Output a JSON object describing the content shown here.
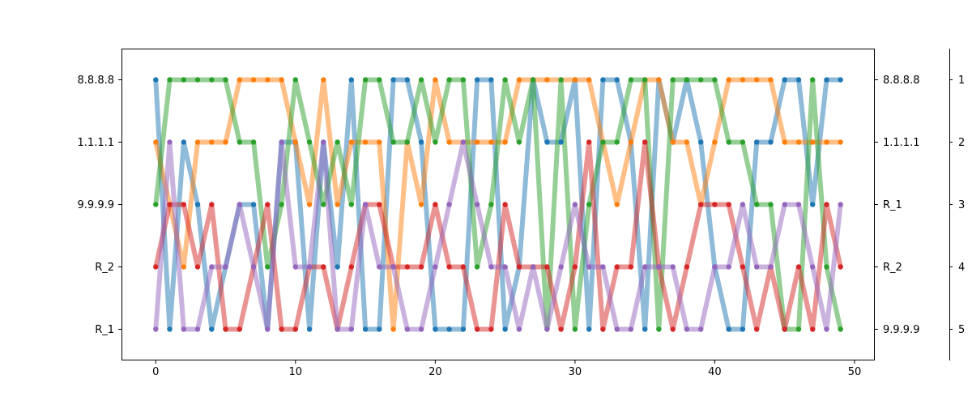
{
  "chart_data": {
    "type": "line",
    "title": "",
    "xlabel": "",
    "ylabel": "",
    "xlim": [
      -2.45,
      51.45
    ],
    "ylim": [
      0.5,
      5.5
    ],
    "x_ticks": [
      0,
      10,
      20,
      30,
      40,
      50
    ],
    "grid": false,
    "legend": "none",
    "left_ticks": [
      {
        "pos": 1,
        "label": "8.8.8.8"
      },
      {
        "pos": 2,
        "label": "1.1.1.1"
      },
      {
        "pos": 3,
        "label": "9.9.9.9"
      },
      {
        "pos": 4,
        "label": "R_2"
      },
      {
        "pos": 5,
        "label": "R_1"
      }
    ],
    "right_ticks": [
      {
        "pos": 1,
        "label": "8.8.8.8"
      },
      {
        "pos": 2,
        "label": "1.1.1.1"
      },
      {
        "pos": 3,
        "label": "R_1"
      },
      {
        "pos": 4,
        "label": "R_2"
      },
      {
        "pos": 5,
        "label": "9.9.9.9"
      }
    ],
    "far_right_ticks": [
      {
        "pos": 1,
        "label": "1"
      },
      {
        "pos": 2,
        "label": "2"
      },
      {
        "pos": 3,
        "label": "3"
      },
      {
        "pos": 4,
        "label": "4"
      },
      {
        "pos": 5,
        "label": "5"
      }
    ],
    "series": [
      {
        "color": "#1f77b4",
        "values": [
          1,
          5,
          2,
          3,
          5,
          4,
          3,
          3,
          5,
          2,
          2,
          5,
          2,
          4,
          1,
          5,
          5,
          1,
          1,
          2,
          5,
          5,
          5,
          1,
          1,
          5,
          4,
          1,
          2,
          2,
          1,
          5,
          1,
          1,
          2,
          5,
          1,
          2,
          1,
          2,
          4,
          5,
          5,
          2,
          2,
          1,
          1,
          3,
          1,
          1
        ]
      },
      {
        "color": "#ff7f0e",
        "values": [
          2,
          3,
          4,
          2,
          2,
          2,
          1,
          1,
          1,
          1,
          2,
          3,
          1,
          3,
          2,
          2,
          2,
          5,
          2,
          3,
          1,
          2,
          2,
          2,
          2,
          2,
          1,
          1,
          1,
          1,
          1,
          1,
          2,
          3,
          2,
          1,
          1,
          2,
          2,
          3,
          2,
          1,
          1,
          1,
          1,
          2,
          2,
          2,
          2,
          2
        ]
      },
      {
        "color": "#2ca02c",
        "values": [
          3,
          1,
          1,
          1,
          1,
          1,
          2,
          2,
          4,
          3,
          1,
          2,
          3,
          2,
          3,
          1,
          1,
          2,
          2,
          1,
          2,
          1,
          1,
          4,
          3,
          1,
          2,
          1,
          5,
          1,
          5,
          3,
          2,
          2,
          1,
          1,
          5,
          1,
          1,
          1,
          1,
          2,
          2,
          3,
          3,
          5,
          5,
          1,
          4,
          5
        ]
      },
      {
        "color": "#d62728",
        "values": [
          4,
          3,
          3,
          4,
          3,
          5,
          5,
          4,
          3,
          5,
          5,
          4,
          4,
          5,
          4,
          3,
          3,
          4,
          4,
          4,
          3,
          4,
          4,
          5,
          5,
          3,
          4,
          4,
          4,
          5,
          4,
          2,
          5,
          4,
          4,
          2,
          4,
          5,
          4,
          3,
          3,
          3,
          4,
          5,
          4,
          5,
          4,
          5,
          3,
          4
        ]
      },
      {
        "color": "#9467bd",
        "values": [
          5,
          2,
          5,
          5,
          4,
          4,
          3,
          4,
          5,
          2,
          4,
          4,
          2,
          5,
          5,
          3,
          4,
          4,
          5,
          5,
          4,
          3,
          2,
          3,
          4,
          4,
          5,
          4,
          5,
          4,
          3,
          4,
          4,
          5,
          5,
          4,
          4,
          4,
          5,
          5,
          4,
          4,
          3,
          4,
          4,
          3,
          3,
          4,
          5,
          3
        ]
      }
    ]
  }
}
